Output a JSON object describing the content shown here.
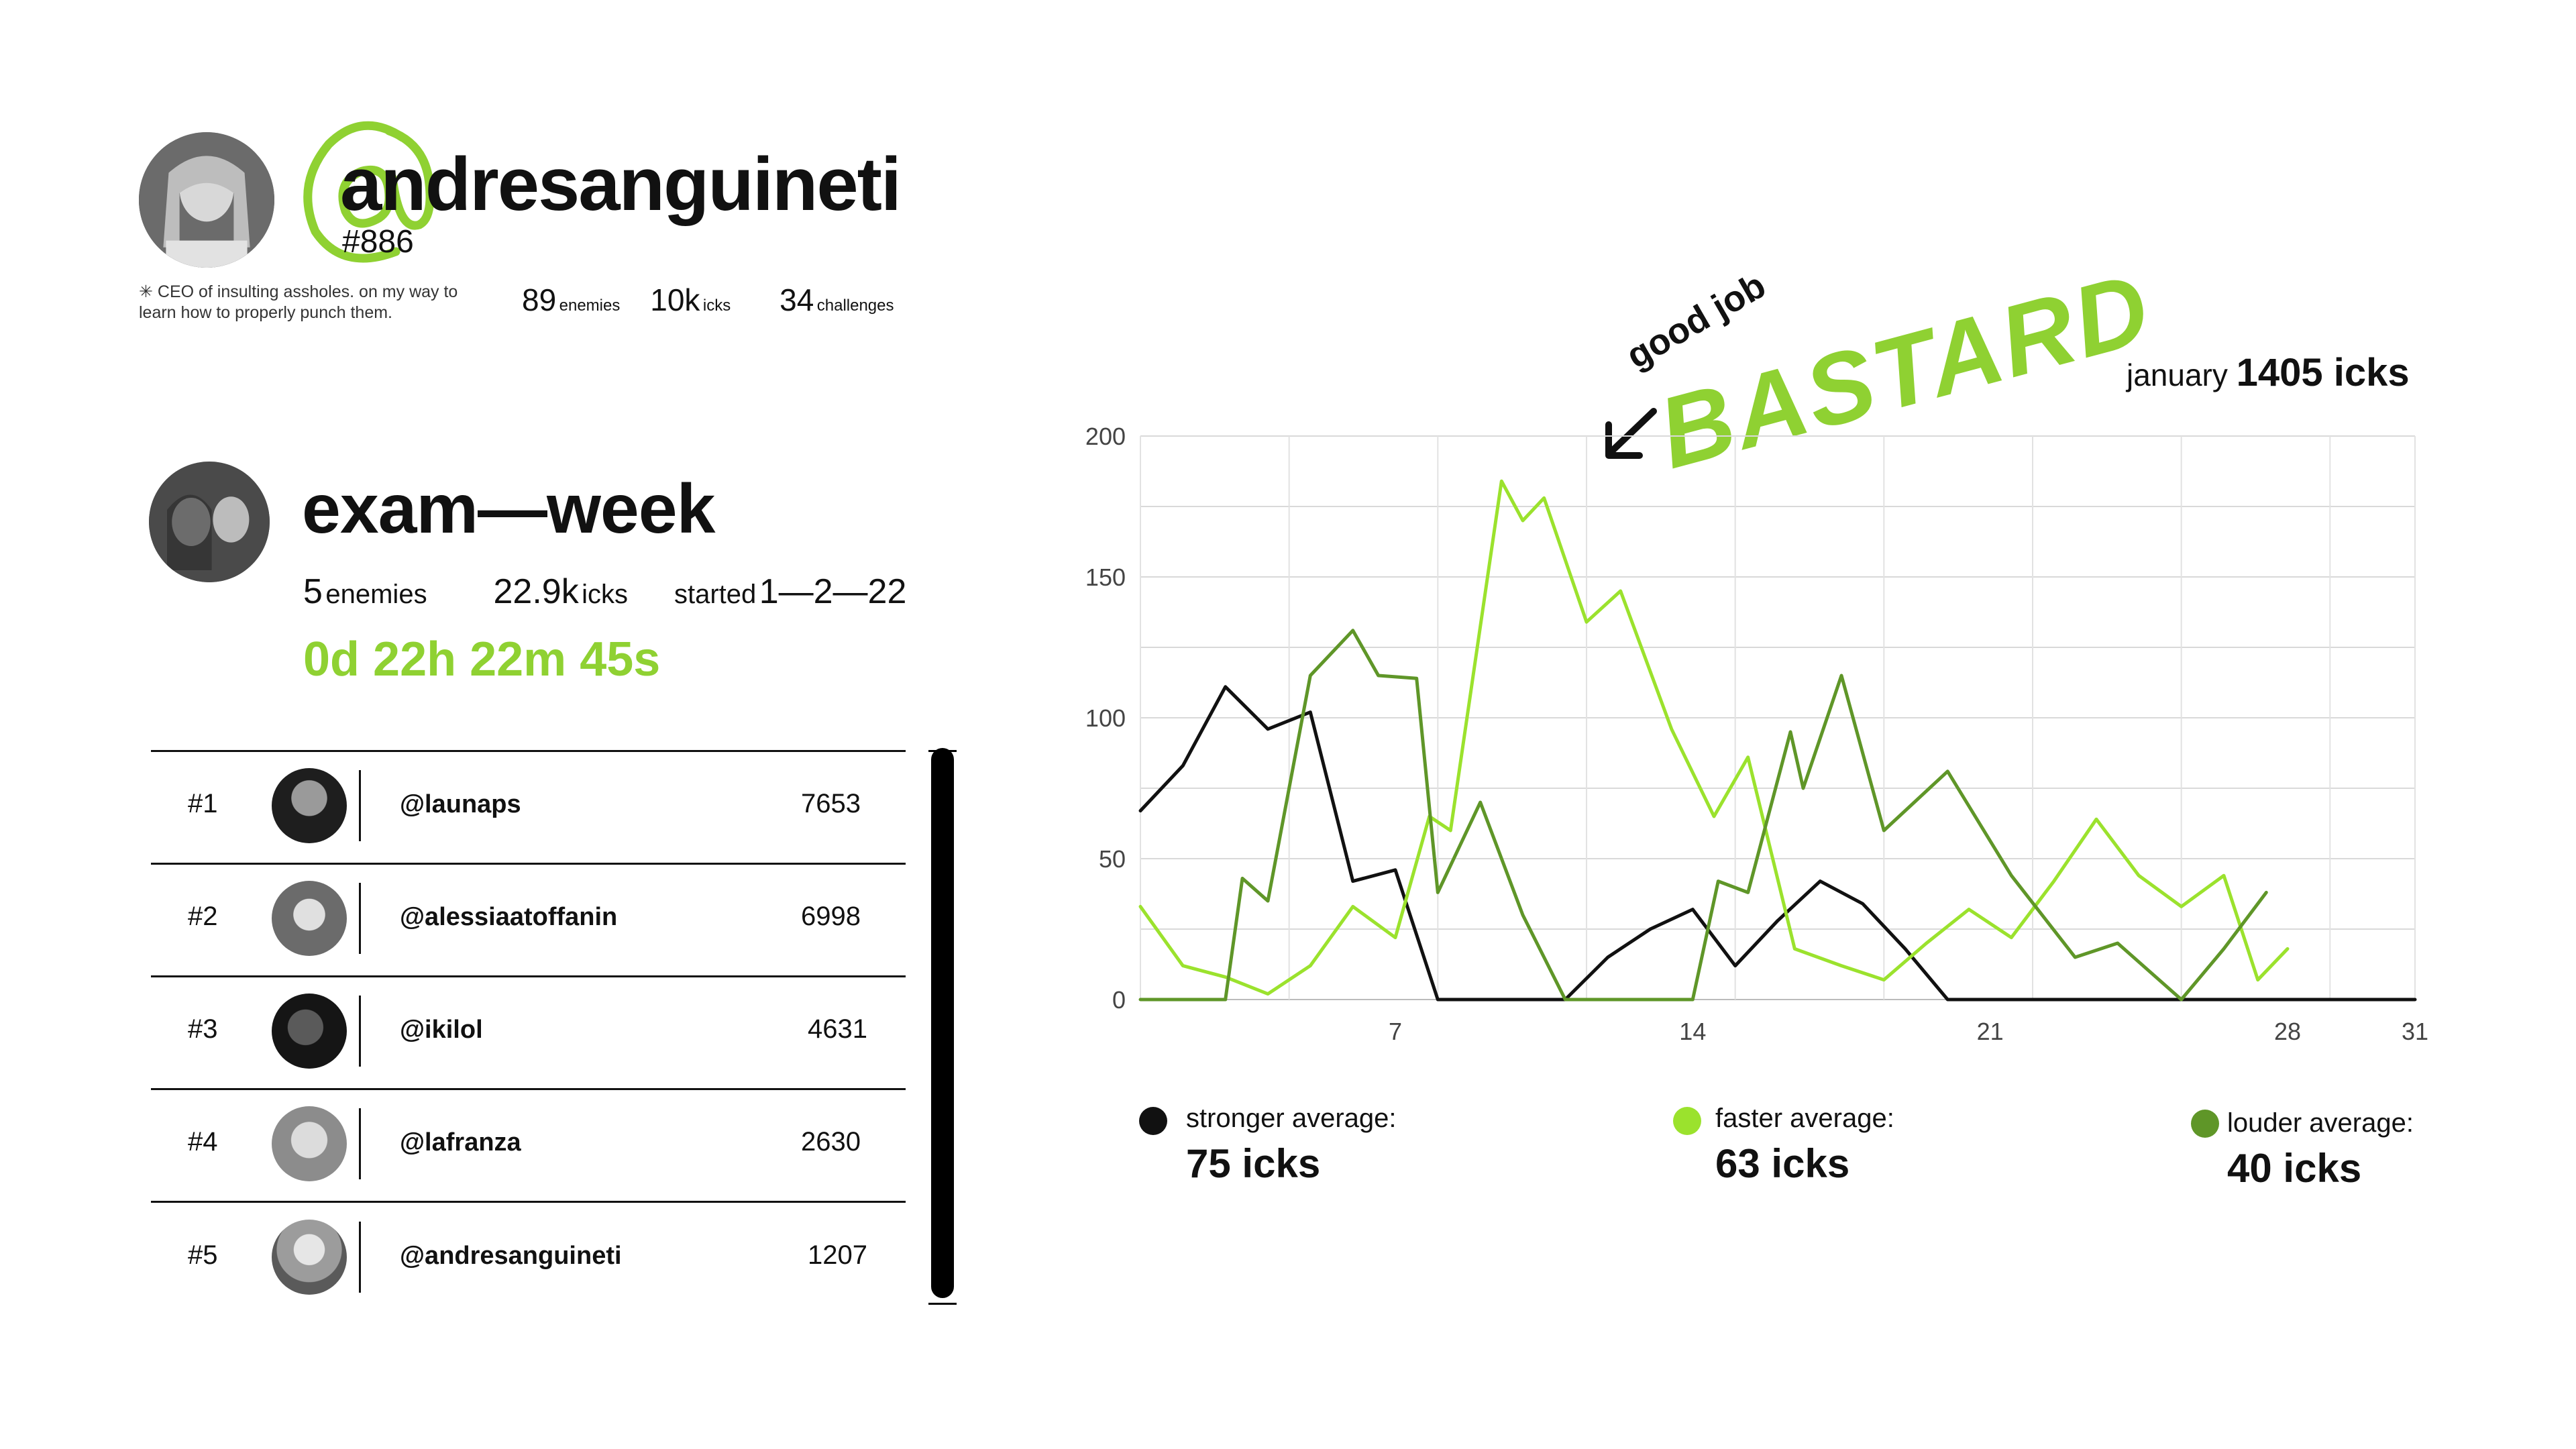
{
  "profile": {
    "at_symbol": "@",
    "handle": "andresanguineti",
    "tag": "#886",
    "bio": "✳ CEO of insulting assholes. on my way to learn how to properly punch them.",
    "stats": [
      {
        "value": "89",
        "label": "enemies"
      },
      {
        "value": "10k",
        "label": "icks"
      },
      {
        "value": "34",
        "label": "challenges"
      }
    ]
  },
  "group": {
    "title": "exam—week",
    "enemies_value": "5",
    "enemies_label": "enemies",
    "icks_value": "22.9k",
    "icks_label": "icks",
    "started_label": "started",
    "started_value": "1—2—22",
    "timer": "0d 22h 22m 45s"
  },
  "leaderboard": [
    {
      "rank": "#1",
      "name": "@launaps",
      "score": "7653"
    },
    {
      "rank": "#2",
      "name": "@alessiaatoffanin",
      "score": "6998"
    },
    {
      "rank": "#3",
      "name": "@ikilol",
      "score": "4631"
    },
    {
      "rank": "#4",
      "name": "@lafranza",
      "score": "2630"
    },
    {
      "rank": "#5",
      "name": "@andresanguineti",
      "score": "1207"
    }
  ],
  "annotation": {
    "small": "good job",
    "big": "BASTARD"
  },
  "chart_title": {
    "month": "january",
    "total": "1405 icks"
  },
  "colors": {
    "accent": "#8fd132",
    "stronger": "#111111",
    "faster": "#9be22d",
    "louder": "#5f9628"
  },
  "chart_data": {
    "type": "line",
    "x": [
      1,
      2,
      3,
      4,
      5,
      6,
      7,
      8,
      9,
      10,
      11,
      12,
      13,
      14,
      15,
      16,
      17,
      18,
      19,
      20,
      21,
      22,
      23,
      24,
      25,
      26,
      27,
      28,
      29,
      30,
      31
    ],
    "xticks": [
      7,
      14,
      21,
      28,
      31
    ],
    "yticks": [
      0,
      50,
      100,
      150,
      200
    ],
    "ylim": [
      0,
      200
    ],
    "xlim": [
      1,
      31
    ],
    "grid": true,
    "series": [
      {
        "name": "stronger",
        "color": "#111111",
        "points": [
          [
            1,
            67
          ],
          [
            2,
            83
          ],
          [
            3,
            111
          ],
          [
            4,
            96
          ],
          [
            5,
            102
          ],
          [
            6,
            42
          ],
          [
            7,
            46
          ],
          [
            8,
            0
          ],
          [
            9,
            0
          ],
          [
            10,
            0
          ],
          [
            11,
            0
          ],
          [
            12,
            15
          ],
          [
            13,
            25
          ],
          [
            14,
            32
          ],
          [
            15,
            12
          ],
          [
            16,
            28
          ],
          [
            17,
            42
          ],
          [
            18,
            34
          ],
          [
            19,
            18
          ],
          [
            20,
            0
          ],
          [
            21,
            0
          ],
          [
            22,
            0
          ],
          [
            23,
            0
          ],
          [
            24,
            0
          ],
          [
            25,
            0
          ],
          [
            26,
            0
          ],
          [
            27,
            0
          ],
          [
            28,
            0
          ],
          [
            29,
            0
          ],
          [
            30,
            0
          ],
          [
            31,
            0
          ]
        ]
      },
      {
        "name": "faster",
        "color": "#9be22d",
        "points": [
          [
            1,
            33
          ],
          [
            2,
            12
          ],
          [
            3,
            8
          ],
          [
            4,
            2
          ],
          [
            5,
            12
          ],
          [
            6,
            33
          ],
          [
            7,
            22
          ],
          [
            7.8,
            65
          ],
          [
            8.3,
            60
          ],
          [
            9.5,
            184
          ],
          [
            10.0,
            170
          ],
          [
            10.5,
            178
          ],
          [
            11.5,
            134
          ],
          [
            12.3,
            145
          ],
          [
            13.5,
            96
          ],
          [
            14.5,
            65
          ],
          [
            15.3,
            86
          ],
          [
            16.4,
            18
          ],
          [
            17.5,
            12
          ],
          [
            18.5,
            7
          ],
          [
            19.5,
            20
          ],
          [
            20.5,
            32
          ],
          [
            21.5,
            22
          ],
          [
            22.5,
            42
          ],
          [
            23.5,
            64
          ],
          [
            24.5,
            44
          ],
          [
            25.5,
            33
          ],
          [
            26.5,
            44
          ],
          [
            27.3,
            7
          ],
          [
            28,
            18
          ]
        ]
      },
      {
        "name": "louder",
        "color": "#5f9628",
        "points": [
          [
            1,
            0
          ],
          [
            2,
            0
          ],
          [
            3,
            0
          ],
          [
            3.4,
            43
          ],
          [
            4,
            35
          ],
          [
            5,
            115
          ],
          [
            6,
            131
          ],
          [
            6.6,
            115
          ],
          [
            7.5,
            114
          ],
          [
            8.0,
            38
          ],
          [
            9.0,
            70
          ],
          [
            10.0,
            30
          ],
          [
            11.0,
            0
          ],
          [
            12.0,
            0
          ],
          [
            13.0,
            0
          ],
          [
            14.0,
            0
          ],
          [
            14.6,
            42
          ],
          [
            15.3,
            38
          ],
          [
            16.3,
            95
          ],
          [
            16.6,
            75
          ],
          [
            17.5,
            115
          ],
          [
            18.5,
            60
          ],
          [
            20.0,
            81
          ],
          [
            21.5,
            44
          ],
          [
            23.0,
            15
          ],
          [
            24.0,
            20
          ],
          [
            25.5,
            0
          ],
          [
            26.5,
            18
          ],
          [
            27.5,
            38
          ]
        ]
      }
    ]
  },
  "legend": [
    {
      "label": "stronger average:",
      "value": "75 icks"
    },
    {
      "label": "faster average:",
      "value": "63 icks"
    },
    {
      "label": "louder average:",
      "value": "40 icks"
    }
  ]
}
